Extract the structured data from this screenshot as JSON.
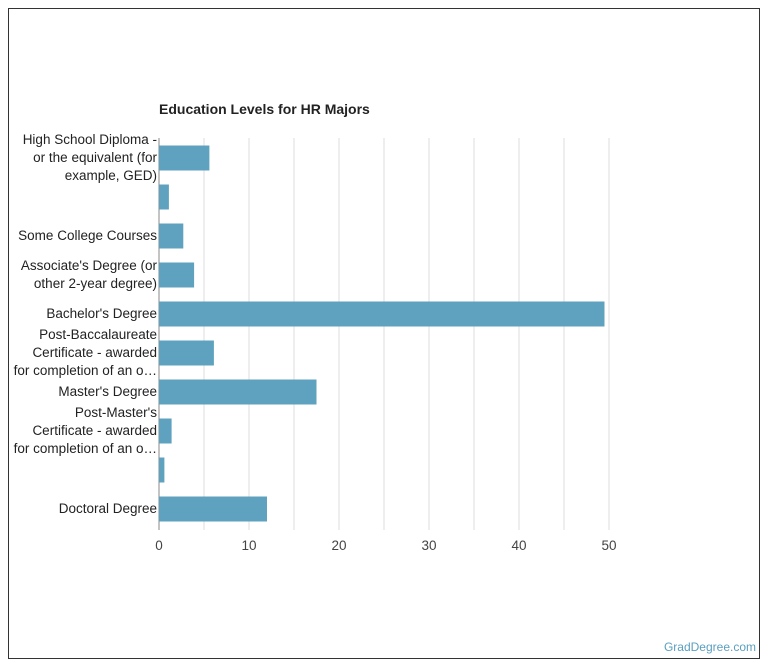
{
  "chart_data": {
    "type": "bar",
    "orientation": "horizontal",
    "title": "Education Levels for HR Majors",
    "xlabel": "",
    "ylabel": "",
    "xlim": [
      0,
      55
    ],
    "xticks": [
      0,
      10,
      20,
      30,
      40,
      50
    ],
    "grid": true,
    "bar_color": "#5fa2bf",
    "categories": [
      "High School Diploma - or the equivalent (for example, GED)",
      "",
      "Some College Courses",
      "Associate's Degree (or other 2-year degree)",
      "Bachelor's Degree",
      "Post-Baccalaureate Certificate - awarded for completion of an o…",
      "Master's Degree",
      "Post-Master's Certificate - awarded for completion of an o…",
      "",
      "Doctoral Degree"
    ],
    "category_lines": [
      [
        "High School Diploma -",
        "or the equivalent (for",
        "example, GED)"
      ],
      [],
      [
        "Some College Courses"
      ],
      [
        "Associate's Degree (or",
        "other 2-year degree)"
      ],
      [
        "Bachelor's Degree"
      ],
      [
        "Post-Baccalaureate",
        "Certificate - awarded",
        "for completion of an o…"
      ],
      [
        "Master's Degree"
      ],
      [
        "Post-Master's",
        "Certificate - awarded",
        "for completion of an o…"
      ],
      [],
      [
        "Doctoral Degree"
      ]
    ],
    "values": [
      5.6,
      1.1,
      2.7,
      3.9,
      49.5,
      6.1,
      17.5,
      1.4,
      0.6,
      12.0
    ]
  },
  "watermark": "GradDegree.com"
}
